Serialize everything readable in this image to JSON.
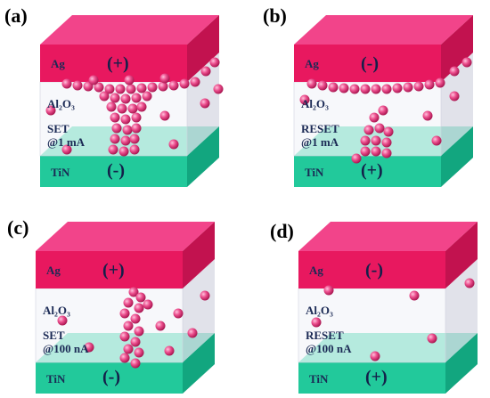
{
  "panels": [
    {
      "label": "(a)",
      "top_electrode": "Ag",
      "top_polarity": "(+)",
      "oxide": "Al₂O₃",
      "state": "SET",
      "current": "@1 mA",
      "bottom_electrode": "TiN",
      "bottom_polarity": "(-)"
    },
    {
      "label": "(b)",
      "top_electrode": "Ag",
      "top_polarity": "(-)",
      "oxide": "Al₂O₃",
      "state": "RESET",
      "current": "@1 mA",
      "bottom_electrode": "TiN",
      "bottom_polarity": "(+)"
    },
    {
      "label": "(c)",
      "top_electrode": "Ag",
      "top_polarity": "(+)",
      "oxide": "Al₂O₃",
      "state": "SET",
      "current": "@100 nA",
      "bottom_electrode": "TiN",
      "bottom_polarity": "(-)"
    },
    {
      "label": "(d)",
      "top_electrode": "Ag",
      "top_polarity": "(-)",
      "oxide": "Al₂O₃",
      "state": "RESET",
      "current": "@100 nA",
      "bottom_electrode": "TiN",
      "bottom_polarity": "(+)"
    }
  ]
}
